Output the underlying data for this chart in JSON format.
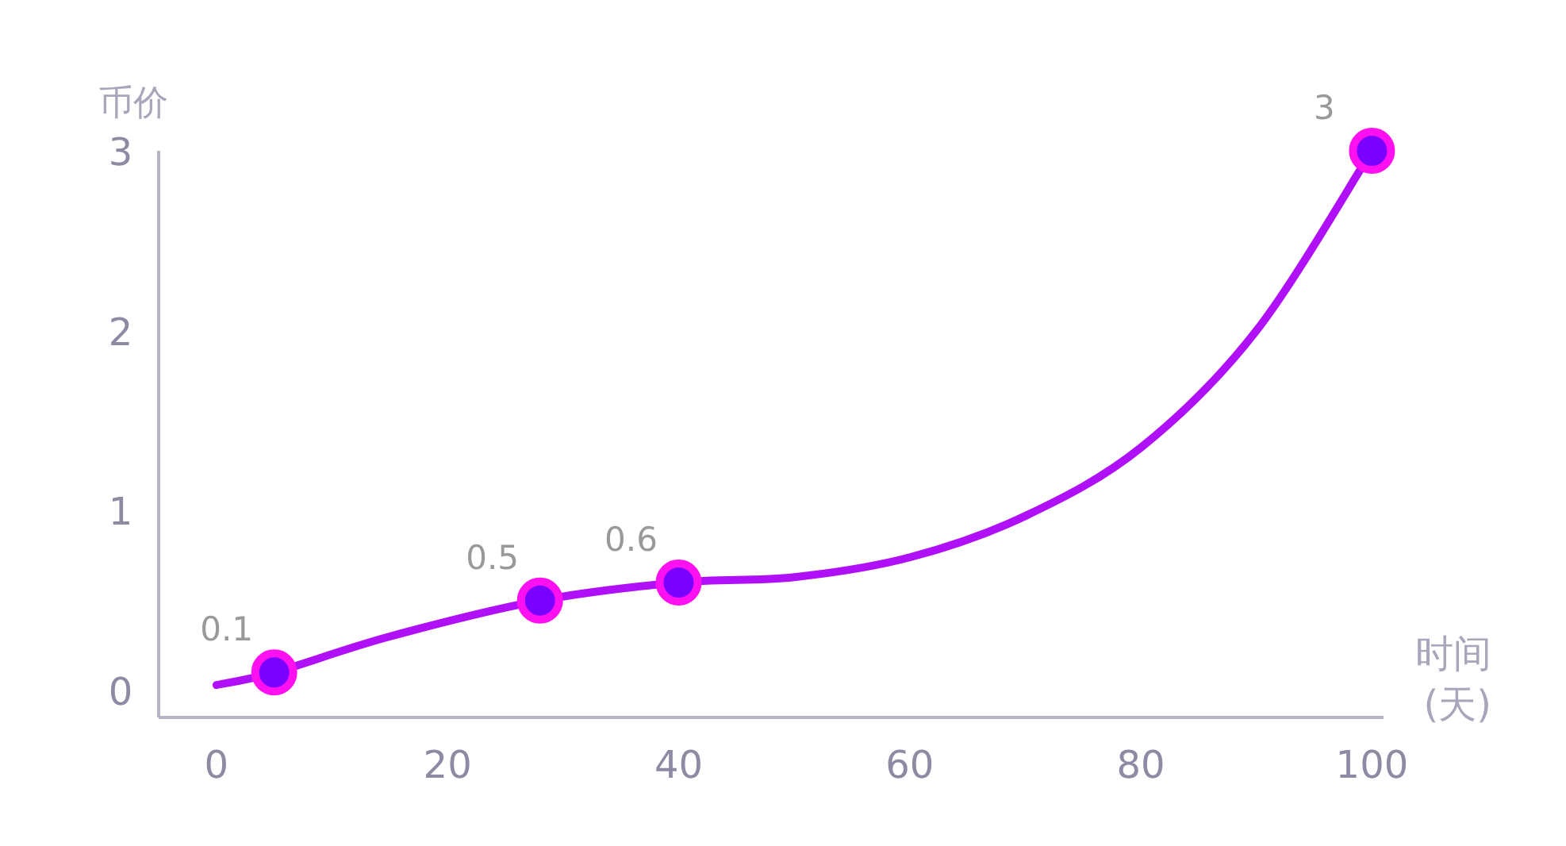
{
  "chart_data": {
    "type": "line",
    "xlabel": "时间(天)",
    "ylabel": "币价",
    "xlim": [
      -5,
      101
    ],
    "ylim": [
      -0.15,
      3
    ],
    "xticks": [
      0,
      20,
      40,
      60,
      80,
      100
    ],
    "yticks": [
      0,
      1,
      2,
      3
    ],
    "grid": false,
    "series": [
      {
        "type": "line",
        "color": "#b010f8",
        "marker": "none",
        "x": [
          0,
          5,
          15,
          28,
          40,
          50,
          60,
          70,
          80,
          90,
          100
        ],
        "values": [
          0.03,
          0.1,
          0.3,
          0.5,
          0.6,
          0.63,
          0.74,
          0.97,
          1.35,
          2.0,
          3
        ]
      },
      {
        "type": "scatter",
        "color": "#7a00ff",
        "marker": "circle",
        "data_labels": true,
        "x": [
          5,
          28,
          40,
          100
        ],
        "values": [
          0.1,
          0.5,
          0.6,
          3
        ]
      }
    ]
  }
}
